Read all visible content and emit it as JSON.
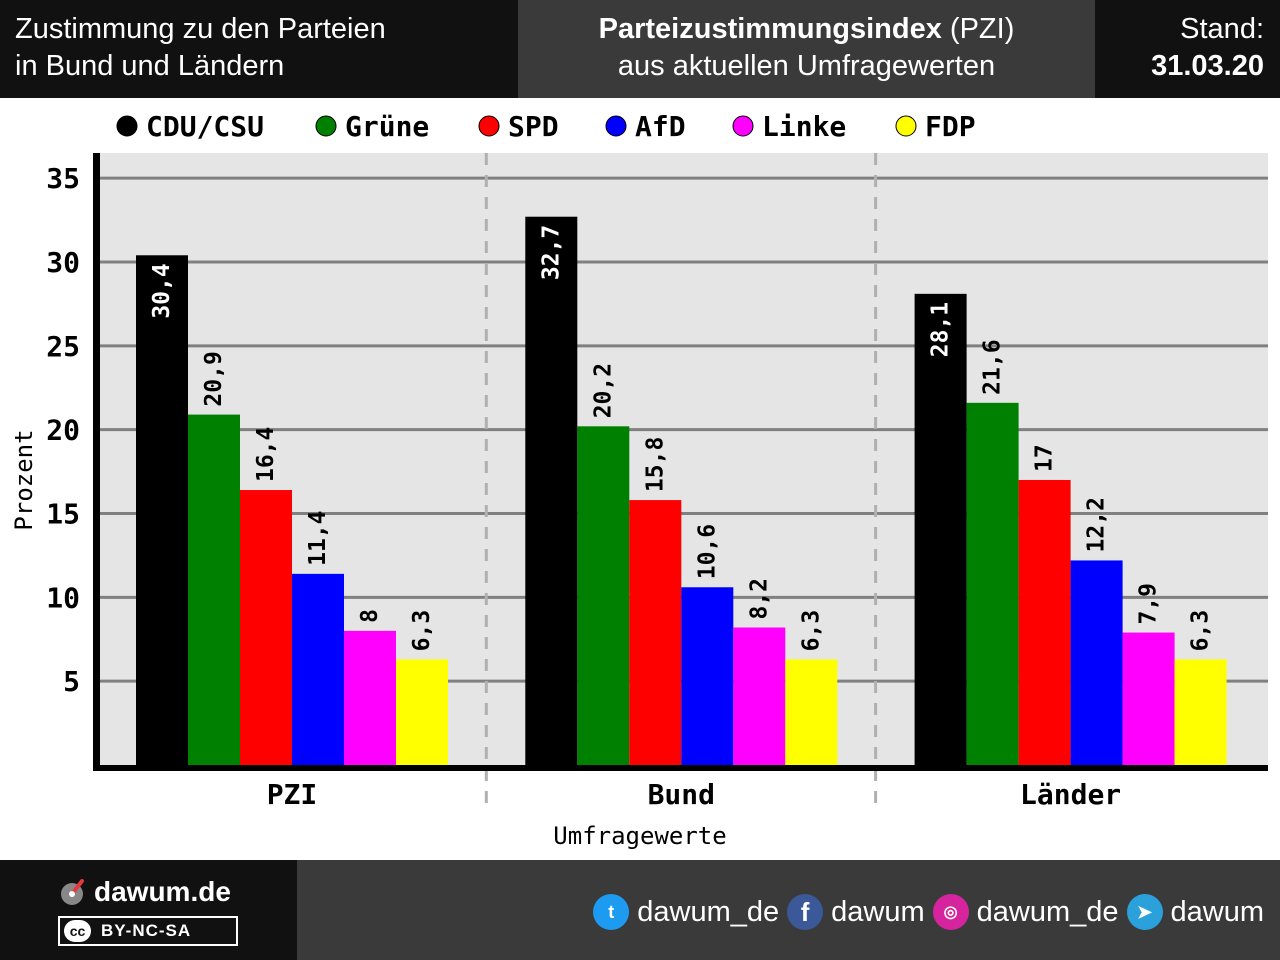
{
  "header": {
    "left_line1": "Zustimmung zu den Parteien",
    "left_line2": "in Bund und Ländern",
    "center_bold": "Parteizustimmungsindex",
    "center_abbr": " (PZI)",
    "center_line2": "aus aktuellen Umfragewerten",
    "right_label": "Stand:",
    "right_date": "31.03.20"
  },
  "chart_data": {
    "type": "bar",
    "categories": [
      "PZI",
      "Bund",
      "Länder"
    ],
    "series": [
      {
        "name": "CDU/CSU",
        "color": "#000000",
        "label_inside": true,
        "values": [
          30.4,
          32.7,
          28.1
        ],
        "labels": [
          "30,4",
          "32,7",
          "28,1"
        ]
      },
      {
        "name": "Grüne",
        "color": "#008000",
        "values": [
          20.9,
          20.2,
          21.6
        ],
        "labels": [
          "20,9",
          "20,2",
          "21,6"
        ]
      },
      {
        "name": "SPD",
        "color": "#ff0000",
        "values": [
          16.4,
          15.8,
          17
        ],
        "labels": [
          "16,4",
          "15,8",
          "17"
        ]
      },
      {
        "name": "AfD",
        "color": "#0000ff",
        "values": [
          11.4,
          10.6,
          12.2
        ],
        "labels": [
          "11,4",
          "10,6",
          "12,2"
        ]
      },
      {
        "name": "Linke",
        "color": "#ff00ff",
        "values": [
          8,
          8.2,
          7.9
        ],
        "labels": [
          "8",
          "8,2",
          "7,9"
        ]
      },
      {
        "name": "FDP",
        "color": "#ffff00",
        "values": [
          6.3,
          6.3,
          6.3
        ],
        "labels": [
          "6,3",
          "6,3",
          "6,3"
        ]
      }
    ],
    "xlabel": "Umfragewerte",
    "ylabel": "Prozent",
    "ylim": [
      0,
      36.5
    ],
    "yticks": [
      5,
      10,
      15,
      20,
      25,
      30,
      35
    ],
    "legend_position": "top",
    "grid": true
  },
  "footer": {
    "brand": "dawum.de",
    "cc_badge": "cc",
    "license": "BY-NC-SA",
    "socials": [
      {
        "icon": "twitter-icon",
        "glyph": "t",
        "handle": "dawum_de"
      },
      {
        "icon": "facebook-icon",
        "glyph": "f",
        "handle": "dawum"
      },
      {
        "icon": "instagram-icon",
        "glyph": "◎",
        "handle": "dawum_de"
      },
      {
        "icon": "telegram-icon",
        "glyph": "➤",
        "handle": "dawum"
      }
    ]
  }
}
